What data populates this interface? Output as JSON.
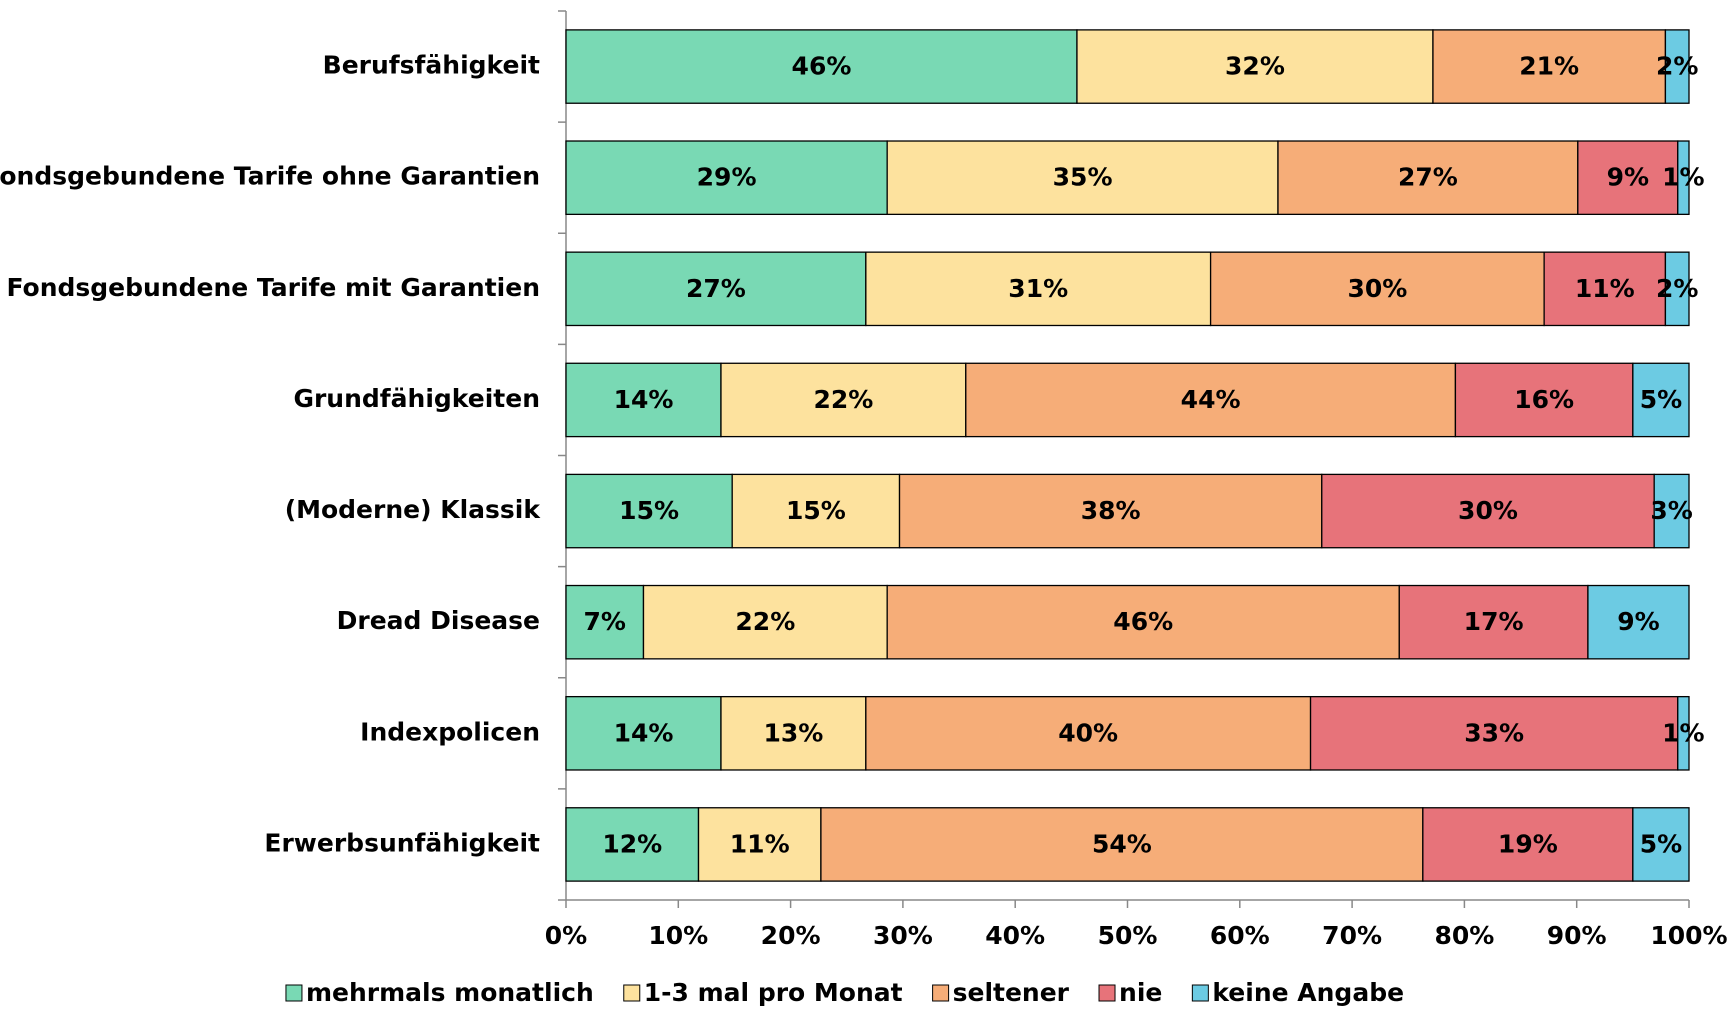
{
  "chart_data": {
    "type": "stacked-bar-horizontal",
    "categories": [
      "Berufsfähigkeit",
      "Fondsgebundene Tarife ohne Garantien",
      "Fondsgebundene Tarife mit Garantien",
      "Grundfähigkeiten",
      "(Moderne) Klassik",
      "Dread Disease",
      "Indexpolicen",
      "Erwerbsunfähigkeit"
    ],
    "series": [
      {
        "name": "mehrmals monatlich",
        "color": "#79d9b4",
        "values": [
          45.5,
          28.6,
          26.7,
          13.8,
          14.8,
          6.9,
          13.8,
          11.8
        ],
        "value_labels": [
          "46%",
          "29%",
          "27%",
          "14%",
          "15%",
          "7%",
          "14%",
          "12%"
        ]
      },
      {
        "name": "1-3 mal pro Monat",
        "color": "#fde29e",
        "values": [
          31.7,
          34.8,
          30.7,
          21.8,
          14.9,
          21.7,
          12.9,
          10.9
        ],
        "value_labels": [
          "32%",
          "35%",
          "31%",
          "22%",
          "15%",
          "22%",
          "13%",
          "11%"
        ]
      },
      {
        "name": "seltener",
        "color": "#f6ad78",
        "values": [
          20.7,
          26.7,
          29.7,
          43.6,
          37.6,
          45.6,
          39.6,
          53.6
        ],
        "value_labels": [
          "21%",
          "27%",
          "30%",
          "44%",
          "38%",
          "46%",
          "40%",
          "54%"
        ]
      },
      {
        "name": "nie",
        "color": "#e7737a",
        "values": [
          0,
          8.9,
          10.8,
          15.8,
          29.6,
          16.8,
          32.7,
          18.7
        ],
        "value_labels": [
          null,
          "9%",
          "11%",
          "16%",
          "30%",
          "17%",
          "33%",
          "19%"
        ]
      },
      {
        "name": "keine Angabe",
        "color": "#6ccbe3",
        "values": [
          2.1,
          1.0,
          2.1,
          5.0,
          3.1,
          9.0,
          1.0,
          5.0
        ],
        "value_labels": [
          "2%",
          "1%",
          "2%",
          "5%",
          "3%",
          "9%",
          "1%",
          "5%"
        ]
      }
    ],
    "xlim": [
      0,
      100
    ],
    "xticks": [
      {
        "value": 0,
        "label": "0%"
      },
      {
        "value": 10,
        "label": "10%"
      },
      {
        "value": 20,
        "label": "20%"
      },
      {
        "value": 30,
        "label": "30%"
      },
      {
        "value": 40,
        "label": "40%"
      },
      {
        "value": 50,
        "label": "50%"
      },
      {
        "value": 60,
        "label": "60%"
      },
      {
        "value": 70,
        "label": "70%"
      },
      {
        "value": 80,
        "label": "80%"
      },
      {
        "value": 90,
        "label": "90%"
      },
      {
        "value": 100,
        "label": "100%"
      }
    ],
    "legend": "bottom"
  }
}
